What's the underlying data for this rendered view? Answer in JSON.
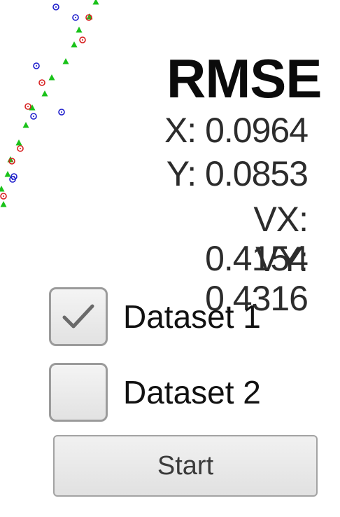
{
  "plot": {
    "series_colors": {
      "dataset_1_circles": "#d71f1f",
      "dataset_2_circles": "#1d1dcc",
      "triangles": "#19c219"
    }
  },
  "rmse": {
    "title": "RMSE",
    "x": "X: 0.0964",
    "y": "Y: 0.0853",
    "vx": "VX: 0.4154",
    "vy": "VY: 0.4316"
  },
  "datasets": [
    {
      "label": "Dataset 1",
      "checked": true
    },
    {
      "label": "Dataset 2",
      "checked": false
    }
  ],
  "start_button": {
    "label": "Start"
  }
}
